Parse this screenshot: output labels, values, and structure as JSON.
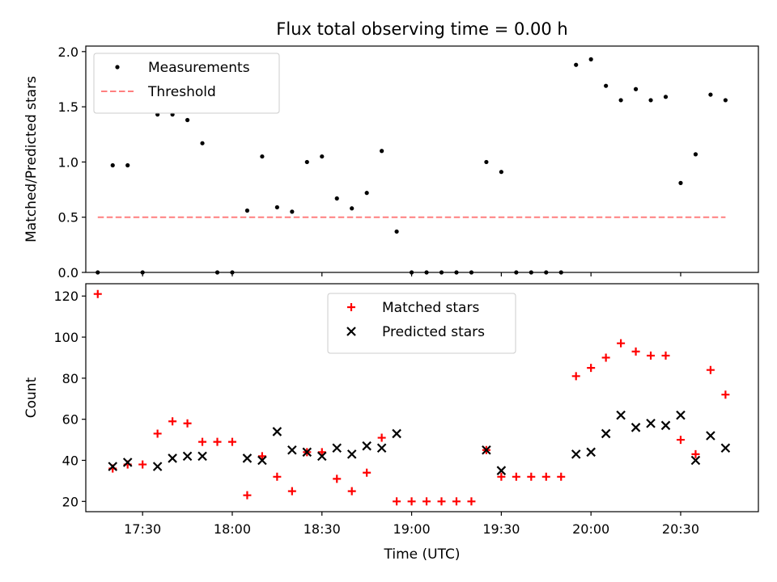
{
  "chart_data": [
    {
      "type": "scatter",
      "title": "Flux total observing time = 0.00 h",
      "xlabel": "",
      "ylabel": "Matched/Predicted stars",
      "xlim": [
        "17:11",
        "20:56"
      ],
      "ylim": [
        0,
        2.05
      ],
      "yticks": [
        0.0,
        0.5,
        1.0,
        1.5,
        2.0
      ],
      "ytick_labels": [
        "0.0",
        "0.5",
        "1.0",
        "1.5",
        "2.0"
      ],
      "grid": false,
      "legend": "top-left",
      "series": [
        {
          "name": "Measurements",
          "marker": "dot",
          "color": "#000000",
          "points": [
            [
              "17:15",
              0.0
            ],
            [
              "17:20",
              0.97
            ],
            [
              "17:25",
              0.97
            ],
            [
              "17:30",
              0.0
            ],
            [
              "17:35",
              1.43
            ],
            [
              "17:40",
              1.43
            ],
            [
              "17:45",
              1.38
            ],
            [
              "17:50",
              1.17
            ],
            [
              "17:55",
              0.0
            ],
            [
              "18:00",
              0.0
            ],
            [
              "18:05",
              0.56
            ],
            [
              "18:10",
              1.05
            ],
            [
              "18:15",
              0.59
            ],
            [
              "18:20",
              0.55
            ],
            [
              "18:25",
              1.0
            ],
            [
              "18:30",
              1.05
            ],
            [
              "18:35",
              0.67
            ],
            [
              "18:40",
              0.58
            ],
            [
              "18:45",
              0.72
            ],
            [
              "18:50",
              1.1
            ],
            [
              "18:55",
              0.37
            ],
            [
              "19:00",
              0.0
            ],
            [
              "19:05",
              0.0
            ],
            [
              "19:10",
              0.0
            ],
            [
              "19:15",
              0.0
            ],
            [
              "19:20",
              0.0
            ],
            [
              "19:25",
              1.0
            ],
            [
              "19:30",
              0.91
            ],
            [
              "19:35",
              0.0
            ],
            [
              "19:40",
              0.0
            ],
            [
              "19:45",
              0.0
            ],
            [
              "19:50",
              0.0
            ],
            [
              "19:55",
              1.88
            ],
            [
              "20:00",
              1.93
            ],
            [
              "20:05",
              1.69
            ],
            [
              "20:10",
              1.56
            ],
            [
              "20:15",
              1.66
            ],
            [
              "20:20",
              1.56
            ],
            [
              "20:25",
              1.59
            ],
            [
              "20:30",
              0.81
            ],
            [
              "20:35",
              1.07
            ],
            [
              "20:40",
              1.61
            ],
            [
              "20:45",
              1.56
            ]
          ]
        },
        {
          "name": "Threshold",
          "marker": "dashed-line",
          "color": "#ff7f7f",
          "points": [
            [
              "17:15",
              0.5
            ],
            [
              "20:45",
              0.5
            ]
          ]
        }
      ]
    },
    {
      "type": "scatter",
      "title": "",
      "xlabel": "Time (UTC)",
      "ylabel": "Count",
      "xlim": [
        "17:11",
        "20:56"
      ],
      "ylim": [
        15,
        126
      ],
      "xticks": [
        "17:30",
        "18:00",
        "18:30",
        "19:00",
        "19:30",
        "20:00",
        "20:30"
      ],
      "yticks": [
        20,
        40,
        60,
        80,
        100,
        120
      ],
      "ytick_labels": [
        "20",
        "40",
        "60",
        "80",
        "100",
        "120"
      ],
      "grid": false,
      "legend": "top-center",
      "series": [
        {
          "name": "Matched stars",
          "marker": "plus",
          "color": "#ff0000",
          "points": [
            [
              "17:15",
              121
            ],
            [
              "17:20",
              36
            ],
            [
              "17:25",
              38
            ],
            [
              "17:30",
              38
            ],
            [
              "17:35",
              53
            ],
            [
              "17:40",
              59
            ],
            [
              "17:45",
              58
            ],
            [
              "17:50",
              49
            ],
            [
              "17:55",
              49
            ],
            [
              "18:00",
              49
            ],
            [
              "18:05",
              23
            ],
            [
              "18:10",
              42
            ],
            [
              "18:15",
              32
            ],
            [
              "18:20",
              25
            ],
            [
              "18:25",
              44
            ],
            [
              "18:30",
              44
            ],
            [
              "18:35",
              31
            ],
            [
              "18:40",
              25
            ],
            [
              "18:45",
              34
            ],
            [
              "18:50",
              51
            ],
            [
              "18:55",
              20
            ],
            [
              "19:00",
              20
            ],
            [
              "19:05",
              20
            ],
            [
              "19:10",
              20
            ],
            [
              "19:15",
              20
            ],
            [
              "19:20",
              20
            ],
            [
              "19:25",
              45
            ],
            [
              "19:30",
              32
            ],
            [
              "19:35",
              32
            ],
            [
              "19:40",
              32
            ],
            [
              "19:45",
              32
            ],
            [
              "19:50",
              32
            ],
            [
              "19:55",
              81
            ],
            [
              "20:00",
              85
            ],
            [
              "20:05",
              90
            ],
            [
              "20:10",
              97
            ],
            [
              "20:15",
              93
            ],
            [
              "20:20",
              91
            ],
            [
              "20:25",
              91
            ],
            [
              "20:30",
              50
            ],
            [
              "20:35",
              43
            ],
            [
              "20:40",
              84
            ],
            [
              "20:45",
              72
            ]
          ]
        },
        {
          "name": "Predicted stars",
          "marker": "cross",
          "color": "#000000",
          "points": [
            [
              "17:20",
              37
            ],
            [
              "17:25",
              39
            ],
            [
              "17:35",
              37
            ],
            [
              "17:40",
              41
            ],
            [
              "17:45",
              42
            ],
            [
              "17:50",
              42
            ],
            [
              "18:05",
              41
            ],
            [
              "18:10",
              40
            ],
            [
              "18:15",
              54
            ],
            [
              "18:20",
              45
            ],
            [
              "18:25",
              44
            ],
            [
              "18:30",
              42
            ],
            [
              "18:35",
              46
            ],
            [
              "18:40",
              43
            ],
            [
              "18:45",
              47
            ],
            [
              "18:50",
              46
            ],
            [
              "18:55",
              53
            ],
            [
              "19:25",
              45
            ],
            [
              "19:30",
              35
            ],
            [
              "19:55",
              43
            ],
            [
              "20:00",
              44
            ],
            [
              "20:05",
              53
            ],
            [
              "20:10",
              62
            ],
            [
              "20:15",
              56
            ],
            [
              "20:20",
              58
            ],
            [
              "20:25",
              57
            ],
            [
              "20:30",
              62
            ],
            [
              "20:35",
              40
            ],
            [
              "20:40",
              52
            ],
            [
              "20:45",
              46
            ]
          ]
        }
      ]
    }
  ]
}
